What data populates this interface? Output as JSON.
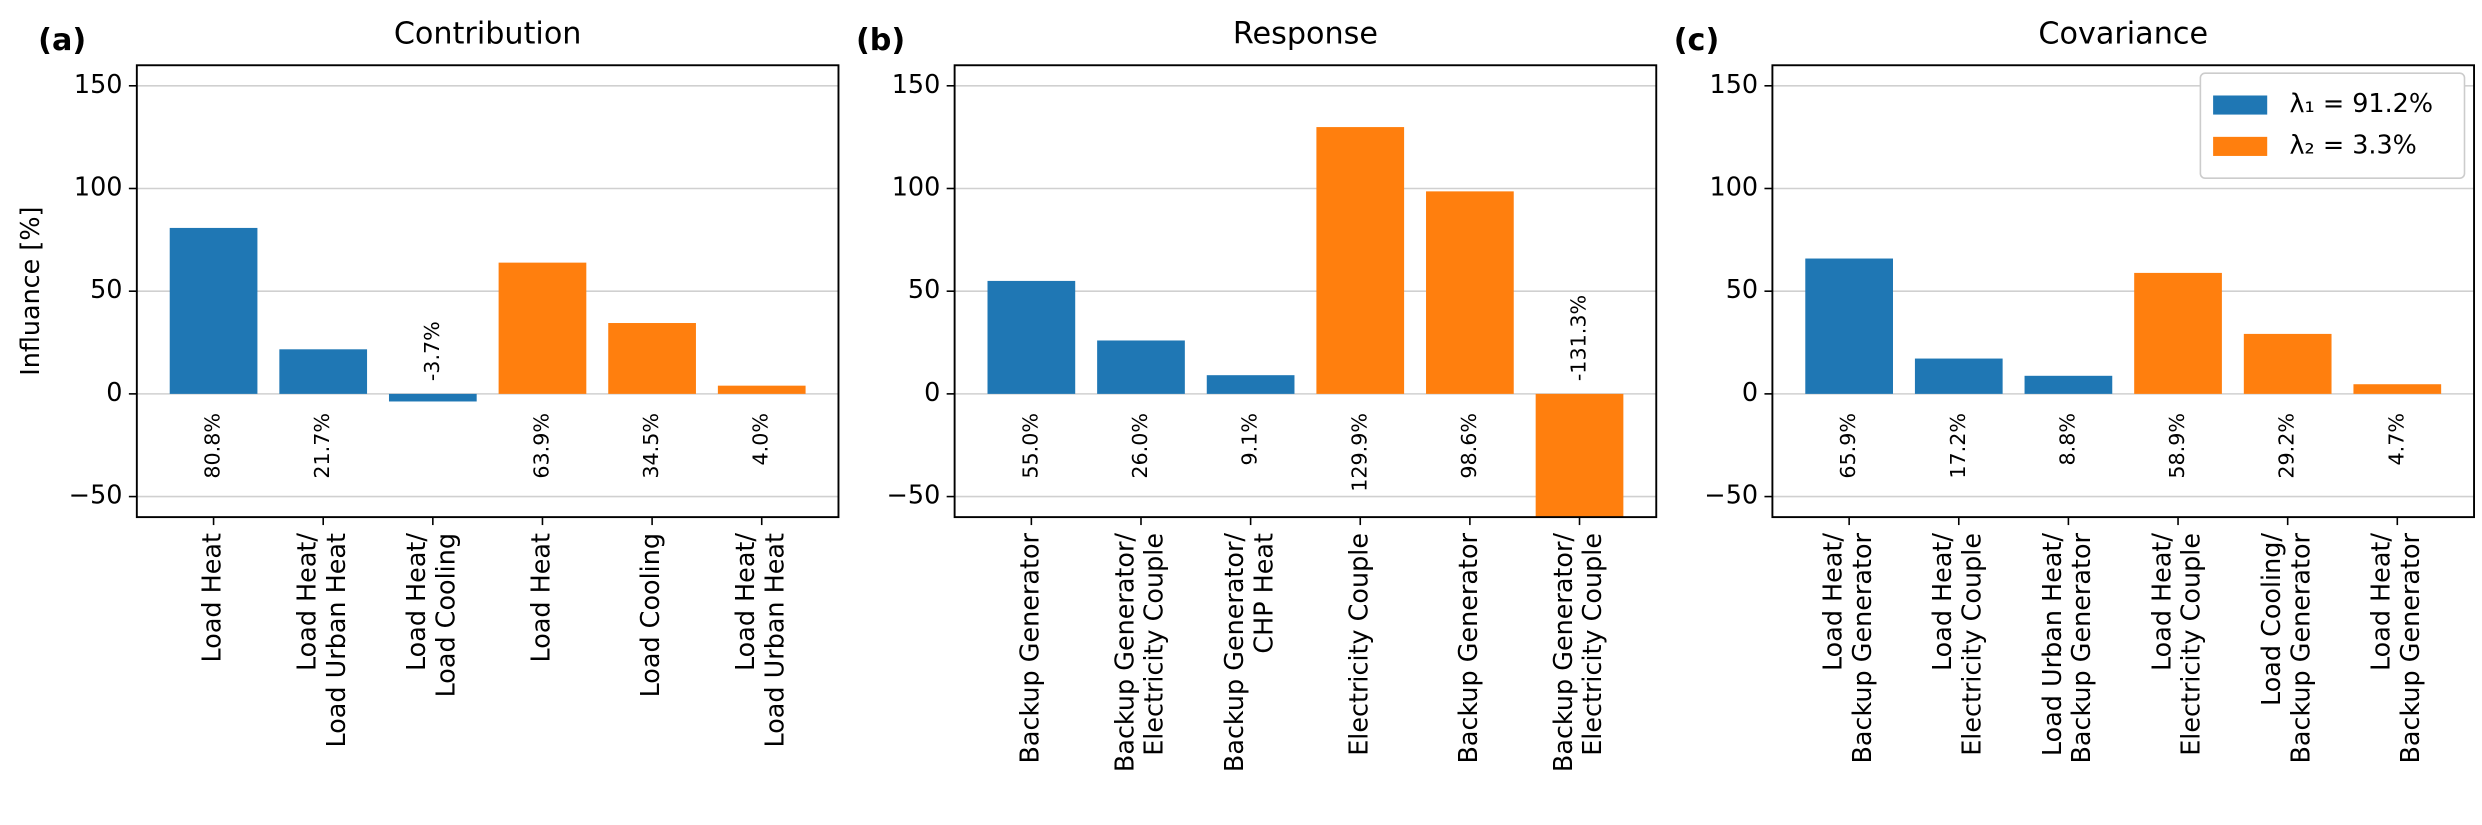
{
  "chart_data": [
    {
      "type": "bar",
      "panel": "(a)",
      "title": "Contribution",
      "ylabel": "Influance [%]",
      "categories": [
        "Load Heat",
        "Load Heat/\nLoad Urban Heat",
        "Load Heat/\nLoad Cooling",
        "Load Heat",
        "Load Cooling",
        "Load Heat/\nLoad Urban Heat"
      ],
      "series": [
        {
          "color": "#1f77b4",
          "values": [
            80.8,
            21.7,
            -3.7,
            null,
            null,
            null
          ],
          "value_labels": [
            "80.8%",
            "21.7%",
            "-3.7%",
            null,
            null,
            null
          ]
        },
        {
          "color": "#ff7f0e",
          "values": [
            null,
            null,
            null,
            63.9,
            34.5,
            4.0
          ],
          "value_labels": [
            null,
            null,
            null,
            "63.9%",
            "34.5%",
            "4.0%"
          ]
        }
      ],
      "ylim": [
        -60,
        160
      ],
      "yticks": [
        {
          "value": -50,
          "label": "−50"
        },
        0,
        50,
        100,
        150
      ],
      "grid": true
    },
    {
      "type": "bar",
      "panel": "(b)",
      "title": "Response",
      "categories": [
        "Backup Generator",
        "Backup Generator/\nElectricity Couple",
        "Backup Generator/\nCHP Heat",
        "Electricity Couple",
        "Backup Generator",
        "Backup Generator/\nElectricity Couple"
      ],
      "series": [
        {
          "color": "#1f77b4",
          "values": [
            55.0,
            26.0,
            9.1,
            null,
            null,
            null
          ],
          "value_labels": [
            "55.0%",
            "26.0%",
            "9.1%",
            null,
            null,
            null
          ]
        },
        {
          "color": "#ff7f0e",
          "values": [
            null,
            null,
            null,
            129.9,
            98.6,
            -131.3
          ],
          "value_labels": [
            null,
            null,
            null,
            "129.9%",
            "98.6%",
            "-131.3%"
          ]
        }
      ],
      "ylim": [
        -60,
        160
      ],
      "yticks": [
        {
          "value": -50,
          "label": "−50"
        },
        0,
        50,
        100,
        150
      ],
      "grid": true
    },
    {
      "type": "bar",
      "panel": "(c)",
      "title": "Covariance",
      "categories": [
        "Load Heat/\nBackup Generator",
        "Load Heat/\nElectricity Couple",
        "Load Urban Heat/\nBackup Generator",
        "Load Heat/\nElectricity Couple",
        "Load Cooling/\nBackup Generator",
        "Load Heat/\nBackup Generator"
      ],
      "series": [
        {
          "name": "λ₁ = 91.2%",
          "color": "#1f77b4",
          "values": [
            65.9,
            17.2,
            8.8,
            null,
            null,
            null
          ],
          "value_labels": [
            "65.9%",
            "17.2%",
            "8.8%",
            null,
            null,
            null
          ]
        },
        {
          "name": "λ₂ = 3.3%",
          "color": "#ff7f0e",
          "values": [
            null,
            null,
            null,
            58.9,
            29.2,
            4.7
          ],
          "value_labels": [
            null,
            null,
            null,
            "58.9%",
            "29.2%",
            "4.7%"
          ]
        }
      ],
      "ylim": [
        -60,
        160
      ],
      "yticks": [
        {
          "value": -50,
          "label": "−50"
        },
        0,
        50,
        100,
        150
      ],
      "grid": true,
      "legend": "upper right"
    }
  ]
}
